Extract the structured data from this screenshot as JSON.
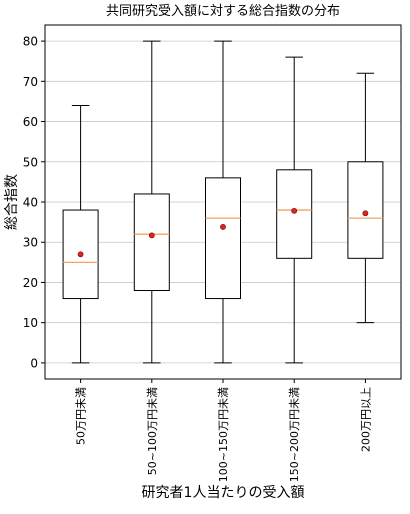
{
  "chart_data": {
    "type": "box",
    "title": "共同研究受入額に対する総合指数の分布",
    "xlabel": "研究者1人当たりの受入額",
    "ylabel": "総合指数",
    "ylim": [
      -4,
      84
    ],
    "yticks": [
      0,
      10,
      20,
      30,
      40,
      50,
      60,
      70,
      80
    ],
    "grid": "horizontal",
    "categories": [
      "50万円未満",
      "50~100万円未満",
      "100~150万円未満",
      "150~200万円未満",
      "200万円以上"
    ],
    "boxes": [
      {
        "whisker_low": 0,
        "q1": 16,
        "median": 25,
        "q3": 38,
        "whisker_high": 64,
        "mean": 27
      },
      {
        "whisker_low": 0,
        "q1": 18,
        "median": 32,
        "q3": 42,
        "whisker_high": 80,
        "mean": 31.7
      },
      {
        "whisker_low": 0,
        "q1": 16,
        "median": 36,
        "q3": 46,
        "whisker_high": 80,
        "mean": 33.8
      },
      {
        "whisker_low": 0,
        "q1": 26,
        "median": 38,
        "q3": 48,
        "whisker_high": 76,
        "mean": 37.8
      },
      {
        "whisker_low": 10,
        "q1": 26,
        "median": 36,
        "q3": 50,
        "whisker_high": 72,
        "mean": 37.2
      }
    ],
    "colors": {
      "box": "#000000",
      "median": "#f4a460",
      "mean_fill": "#d62728",
      "mean_edge": "#8b0000",
      "grid": "#c8c8c8"
    }
  }
}
